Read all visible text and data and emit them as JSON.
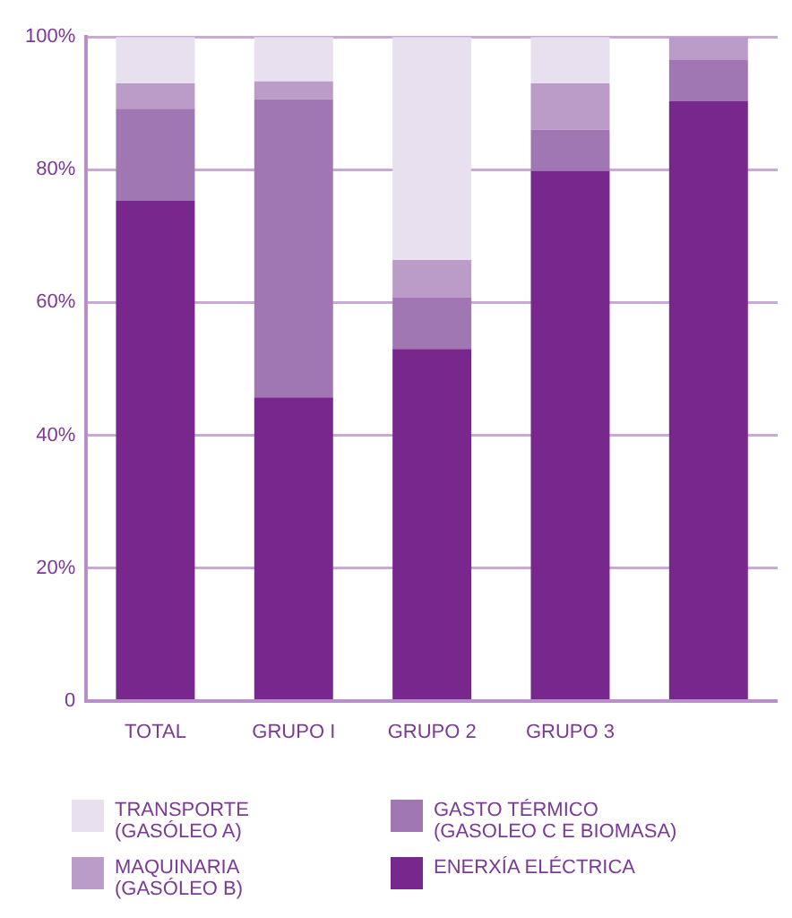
{
  "chart_data": {
    "type": "bar",
    "stacked": true,
    "categories": [
      "TOTAL",
      "GRUPO I",
      "GRUPO 2",
      "GRUPO 3",
      null
    ],
    "series": [
      {
        "name": "ENERXÍA ELÉCTRICA",
        "color": "#78288c",
        "values": [
          75.3,
          45.7,
          53.0,
          79.8,
          90.3
        ]
      },
      {
        "name": "GASTO TÉRMICO (GASOLEO C E BIOMASA)",
        "color": "#a077b2",
        "values": [
          13.9,
          44.9,
          7.8,
          6.2,
          6.2
        ]
      },
      {
        "name": "MAQUINARIA (GASÓLEO B)",
        "color": "#bb9bc8",
        "values": [
          3.8,
          2.7,
          5.6,
          7.0,
          3.5
        ]
      },
      {
        "name": "TRANSPORTE (GASÓLEO A)",
        "color": "#e8e0ee",
        "values": [
          7.0,
          6.7,
          33.6,
          7.0,
          0
        ]
      }
    ],
    "ylim": [
      0,
      100
    ],
    "yticks": [
      0,
      {
        "value": 20,
        "label": "20%"
      },
      {
        "value": 40,
        "label": "40%"
      },
      {
        "value": 60,
        "label": "60%"
      },
      {
        "value": 80,
        "label": "80%"
      },
      {
        "value": 100,
        "label": "100%"
      }
    ],
    "grid": "y",
    "legend": "bottom"
  }
}
